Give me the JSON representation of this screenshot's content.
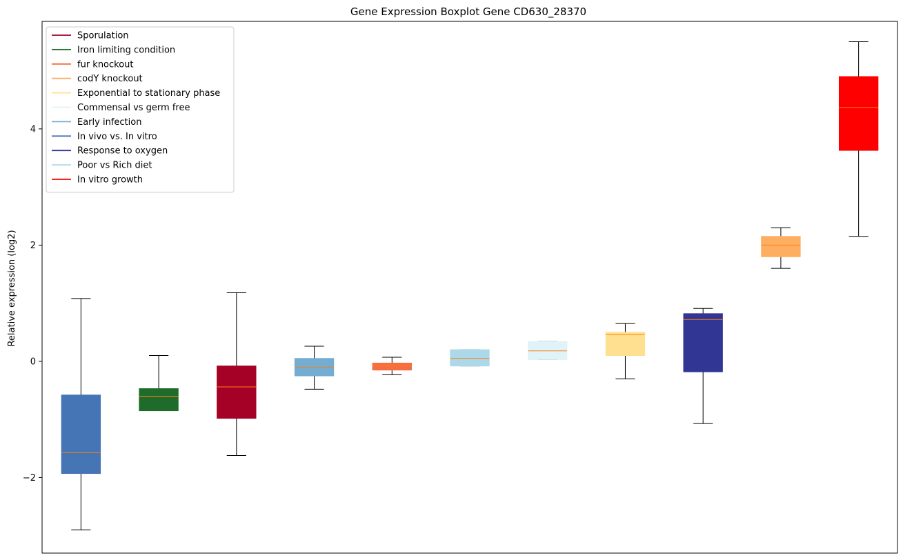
{
  "chart_data": {
    "type": "boxplot",
    "title": "Gene Expression Boxplot Gene CD630_28370",
    "xlabel": "",
    "ylabel": "Relative expression (log2)",
    "ylim": [
      -3.3,
      5.85
    ],
    "yticks": [
      -2,
      0,
      2,
      4
    ],
    "y_tick_labels": [
      "−2",
      "0",
      "2",
      "4"
    ],
    "grid": false,
    "legend_position": "top-left",
    "median_color": "#ff7f0e",
    "whisker_color": "#000000",
    "boxes": [
      {
        "name": "In vivo vs. In vitro",
        "color": "#4575b4",
        "whislo": -2.9,
        "q1": -1.93,
        "med": -1.57,
        "q3": -0.58,
        "whishi": 1.08
      },
      {
        "name": "Iron limiting condition",
        "color": "#1f6b2a",
        "whislo": -0.85,
        "q1": -0.85,
        "med": -0.6,
        "q3": -0.47,
        "whishi": 0.1
      },
      {
        "name": "Sporulation",
        "color": "#a50026",
        "whislo": -1.62,
        "q1": -0.98,
        "med": -0.44,
        "q3": -0.08,
        "whishi": 1.18
      },
      {
        "name": "Early infection",
        "color": "#74add1",
        "whislo": -0.48,
        "q1": -0.25,
        "med": -0.1,
        "q3": 0.05,
        "whishi": 0.26
      },
      {
        "name": "fur knockout",
        "color": "#f46d43",
        "whislo": -0.23,
        "q1": -0.15,
        "med": -0.08,
        "q3": -0.03,
        "whishi": 0.07
      },
      {
        "name": "Poor vs Rich diet",
        "color": "#abd9e9",
        "whislo": -0.08,
        "q1": -0.08,
        "med": 0.05,
        "q3": 0.2,
        "whishi": 0.2
      },
      {
        "name": "Commensal vs germ free",
        "color": "#e0f3f8",
        "whislo": 0.03,
        "q1": 0.03,
        "med": 0.18,
        "q3": 0.34,
        "whishi": 0.34
      },
      {
        "name": "Exponential to stationary phase",
        "color": "#fee090",
        "whislo": -0.3,
        "q1": 0.1,
        "med": 0.46,
        "q3": 0.5,
        "whishi": 0.65
      },
      {
        "name": "Response to oxygen",
        "color": "#313695",
        "whislo": -1.07,
        "q1": -0.18,
        "med": 0.72,
        "q3": 0.82,
        "whishi": 0.91
      },
      {
        "name": "codY knockout",
        "color": "#fdae61",
        "whislo": 1.6,
        "q1": 1.8,
        "med": 2.0,
        "q3": 2.15,
        "whishi": 2.3
      },
      {
        "name": "In vitro growth",
        "color": "#ff0000",
        "whislo": 2.15,
        "q1": 3.63,
        "med": 4.37,
        "q3": 4.9,
        "whishi": 5.5
      }
    ],
    "legend": [
      {
        "label": "Sporulation",
        "color": "#a50026"
      },
      {
        "label": "Iron limiting condition",
        "color": "#1f6b2a"
      },
      {
        "label": "fur knockout",
        "color": "#f46d43"
      },
      {
        "label": "codY knockout",
        "color": "#fdae61"
      },
      {
        "label": "Exponential to stationary phase",
        "color": "#fee090"
      },
      {
        "label": "Commensal vs germ free",
        "color": "#e0f3f8"
      },
      {
        "label": "Early infection",
        "color": "#74add1"
      },
      {
        "label": "In vivo vs. In vitro",
        "color": "#4575b4"
      },
      {
        "label": "Response to oxygen",
        "color": "#313695"
      },
      {
        "label": "Poor vs Rich diet",
        "color": "#abd9e9"
      },
      {
        "label": "In vitro growth",
        "color": "#ff0000"
      }
    ]
  }
}
